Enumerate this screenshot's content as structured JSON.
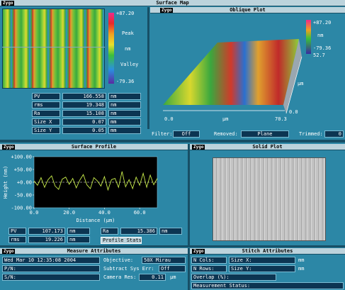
{
  "surface_map": {
    "logo": "Zygo",
    "title": "Surface Map",
    "colorbar": {
      "max": "+87.20",
      "peak": "Peak",
      "unit": "nm",
      "valley": "Valley",
      "min": "-79.36"
    },
    "stats": [
      {
        "label": "PV",
        "value": "166.558",
        "unit": "nm"
      },
      {
        "label": "rms",
        "value": "19.348",
        "unit": "nm"
      },
      {
        "label": "Ra",
        "value": "15.108",
        "unit": "nm"
      },
      {
        "label": "Size X",
        "value": "0.07",
        "unit": "mm"
      },
      {
        "label": "Size Y",
        "value": "0.05",
        "unit": "mm"
      }
    ]
  },
  "oblique_plot": {
    "logo": "Zygo",
    "title": "Oblique Plot",
    "scale": {
      "max": "+87.20",
      "unit": "nm",
      "min": "-79.36"
    },
    "z_axis": {
      "max": "52.7",
      "unit": "µm",
      "min": "0.0"
    },
    "x_axis": {
      "min": "0.0",
      "unit": "µm",
      "max": "70.3"
    }
  },
  "filter_bar": [
    {
      "label": "Filter:",
      "value": "Off"
    },
    {
      "label": "Removed:",
      "value": "Plane"
    },
    {
      "label": "Trimmed:",
      "value": "0"
    }
  ],
  "surface_profile": {
    "logo": "Zygo",
    "title": "Surface Profile",
    "chart": {
      "type": "line",
      "ylabel": "Height (nm)",
      "xlabel": "Distance (µm)",
      "color": "#c8ec4a",
      "x": [
        0,
        2,
        4,
        6,
        8,
        10,
        12,
        14,
        16,
        18,
        20,
        22,
        24,
        26,
        28,
        30,
        32,
        34,
        36,
        38,
        40,
        42,
        44,
        46,
        48,
        50,
        52,
        54,
        56,
        58,
        60,
        62,
        64,
        66,
        68,
        70
      ],
      "values": [
        5,
        -12,
        18,
        -20,
        10,
        25,
        -15,
        -28,
        12,
        20,
        -8,
        15,
        -22,
        8,
        30,
        -10,
        -25,
        18,
        5,
        -15,
        22,
        -30,
        10,
        15,
        -20,
        42,
        -18,
        10,
        -25,
        20,
        -12,
        35,
        -20,
        28,
        -10,
        15
      ],
      "xlim": [
        0,
        70
      ],
      "ylim": [
        -100,
        100
      ],
      "yticks": [
        {
          "value": 100,
          "label": "+100.00"
        },
        {
          "value": 50,
          "label": "+50.00"
        },
        {
          "value": 0,
          "label": "+0.00"
        },
        {
          "value": -50,
          "label": "-50.00"
        },
        {
          "value": -100,
          "label": "-100.00"
        }
      ],
      "xticks": [
        {
          "value": 0,
          "label": "0.0"
        },
        {
          "value": 20,
          "label": "20.0"
        },
        {
          "value": 40,
          "label": "40.0"
        },
        {
          "value": 60,
          "label": "60.0"
        }
      ]
    },
    "stats": [
      {
        "label": "PV",
        "value": "107.173",
        "unit": "nm"
      },
      {
        "label": "rms",
        "value": "19.226",
        "unit": "nm"
      },
      {
        "label": "Ra",
        "value": "15.386",
        "unit": "nm"
      }
    ],
    "button": "Profile Stats"
  },
  "solid_plot": {
    "logo": "Zygo",
    "title": "Solid Plot"
  },
  "measure_attributes": {
    "logo": "Zygo",
    "title": "Measure Attributes",
    "date": "Wed Mar 10 12:35:08 2004",
    "pn": "P/N:",
    "sn": "S/N:",
    "objective": {
      "label": "Objective:",
      "value": "50X Mirau"
    },
    "sys_err": {
      "label": "Subtract Sys Err:",
      "value": "Off"
    },
    "camera": {
      "label": "Camera Res:",
      "value": "0.11",
      "unit": "µm"
    }
  },
  "stitch_attributes": {
    "logo": "Zygo",
    "title": "Stitch Attributes",
    "n_cols": "N Cols:",
    "n_rows": "N Rows:",
    "size_x": {
      "label": "Size X:",
      "unit": "mm"
    },
    "size_y": {
      "label": "Size Y:",
      "unit": "mm"
    },
    "overlap": "Overlap (%):",
    "status": "Measurement Status:"
  }
}
